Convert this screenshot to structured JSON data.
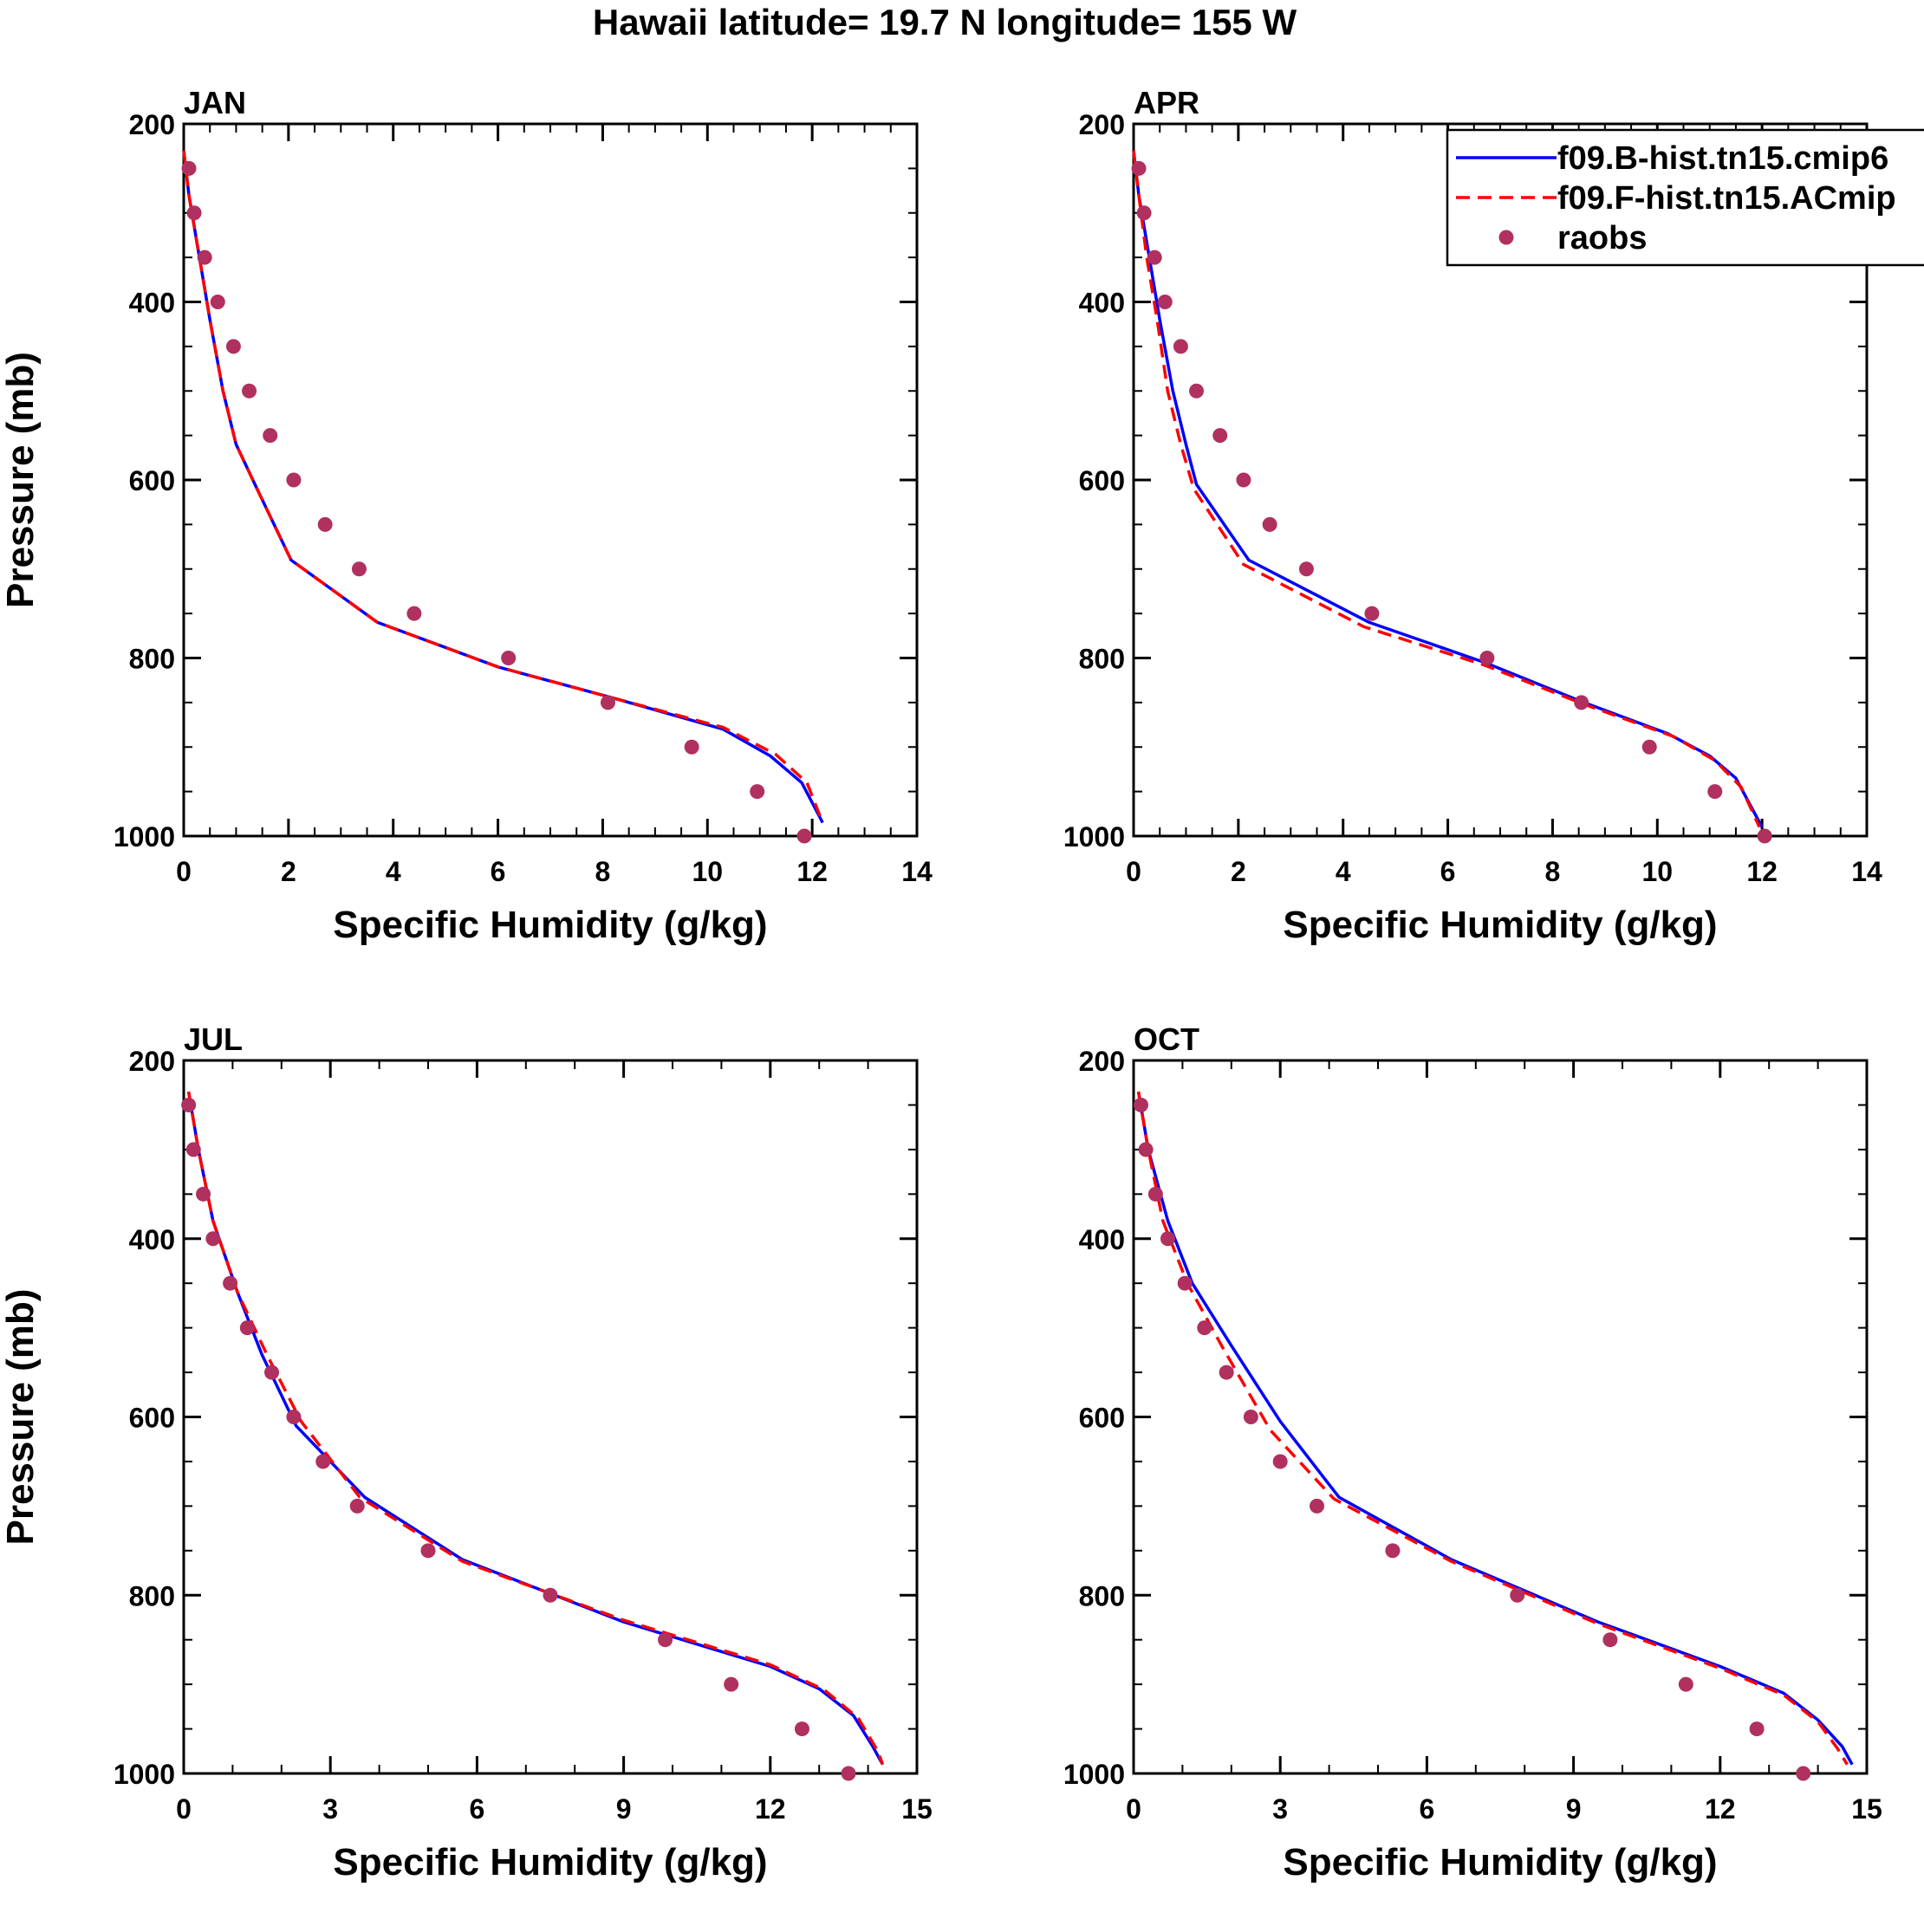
{
  "figure": {
    "title": "Hawaii  latitude= 19.7 N longitude= 155 W"
  },
  "legend": {
    "entries": [
      {
        "label": "f09.B-hist.tn15.cmip6",
        "style": "solid",
        "color": "#0000ff"
      },
      {
        "label": "f09.F-hist.tn15.ACmip",
        "style": "dashed",
        "color": "#ff0000"
      },
      {
        "label": "raobs",
        "style": "marker",
        "color": "#b03060"
      }
    ]
  },
  "chart_data": [
    {
      "type": "line",
      "panel_label": "JAN",
      "xlabel": "Specific Humidity (g/kg)",
      "ylabel": "Pressure (mb)",
      "xlim": [
        0,
        14
      ],
      "ylim": [
        200,
        1000
      ],
      "y_inverted": true,
      "xticks": [
        0,
        2,
        4,
        6,
        8,
        10,
        12,
        14
      ],
      "xtick_labels": [
        "0",
        "2",
        "4",
        "6",
        "8",
        "10",
        "12",
        "14"
      ],
      "yticks": [
        200,
        400,
        600,
        800,
        1000
      ],
      "ytick_labels": [
        "200",
        "400",
        "600",
        "800",
        "1000"
      ],
      "series": [
        {
          "name": "f09.B-hist.tn15.cmip6",
          "style": "solid",
          "color": "#0000ff",
          "points": [
            [
              0.0,
              230
            ],
            [
              0.1,
              280
            ],
            [
              0.3,
              350
            ],
            [
              0.5,
              420
            ],
            [
              0.75,
              500
            ],
            [
              1.0,
              560
            ],
            [
              1.4,
              610
            ],
            [
              2.05,
              690
            ],
            [
              3.7,
              760
            ],
            [
              6.0,
              810
            ],
            [
              8.2,
              845
            ],
            [
              10.3,
              880
            ],
            [
              11.2,
              910
            ],
            [
              11.8,
              940
            ],
            [
              12.2,
              985
            ]
          ]
        },
        {
          "name": "f09.F-hist.tn15.ACmip",
          "style": "dashed",
          "color": "#ff0000",
          "points": [
            [
              0.0,
              230
            ],
            [
              0.1,
              280
            ],
            [
              0.3,
              350
            ],
            [
              0.5,
              420
            ],
            [
              0.75,
              500
            ],
            [
              1.0,
              560
            ],
            [
              1.4,
              610
            ],
            [
              2.05,
              690
            ],
            [
              3.7,
              760
            ],
            [
              6.0,
              810
            ],
            [
              8.2,
              845
            ],
            [
              10.3,
              878
            ],
            [
              11.3,
              908
            ],
            [
              11.9,
              940
            ],
            [
              12.2,
              985
            ]
          ]
        },
        {
          "name": "raobs",
          "style": "marker",
          "color": "#b03060",
          "points": [
            [
              0.1,
              250
            ],
            [
              0.2,
              300
            ],
            [
              0.4,
              350
            ],
            [
              0.65,
              400
            ],
            [
              0.95,
              450
            ],
            [
              1.25,
              500
            ],
            [
              1.65,
              550
            ],
            [
              2.1,
              600
            ],
            [
              2.7,
              650
            ],
            [
              3.35,
              700
            ],
            [
              4.4,
              750
            ],
            [
              6.2,
              800
            ],
            [
              8.1,
              850
            ],
            [
              9.7,
              900
            ],
            [
              10.95,
              950
            ],
            [
              11.85,
              1000
            ]
          ]
        }
      ]
    },
    {
      "type": "line",
      "panel_label": "APR",
      "xlabel": "Specific Humidity (g/kg)",
      "ylabel": "",
      "xlim": [
        0,
        14
      ],
      "ylim": [
        200,
        1000
      ],
      "y_inverted": true,
      "xticks": [
        0,
        2,
        4,
        6,
        8,
        10,
        12,
        14
      ],
      "xtick_labels": [
        "0",
        "2",
        "4",
        "6",
        "8",
        "10",
        "12",
        "14"
      ],
      "yticks": [
        200,
        400,
        600,
        800,
        1000
      ],
      "ytick_labels": [
        "200",
        "400",
        "600",
        "800",
        "1000"
      ],
      "series": [
        {
          "name": "f09.B-hist.tn15.cmip6",
          "style": "solid",
          "color": "#0000ff",
          "points": [
            [
              0.0,
              230
            ],
            [
              0.1,
              280
            ],
            [
              0.3,
              350
            ],
            [
              0.5,
              420
            ],
            [
              0.75,
              500
            ],
            [
              1.0,
              560
            ],
            [
              1.2,
              605
            ],
            [
              2.2,
              690
            ],
            [
              4.5,
              760
            ],
            [
              6.7,
              805
            ],
            [
              8.6,
              850
            ],
            [
              10.2,
              885
            ],
            [
              11.0,
              910
            ],
            [
              11.5,
              935
            ],
            [
              12.0,
              990
            ]
          ]
        },
        {
          "name": "f09.F-hist.tn15.ACmip",
          "style": "dashed",
          "color": "#ff0000",
          "points": [
            [
              0.0,
              230
            ],
            [
              0.1,
              280
            ],
            [
              0.25,
              350
            ],
            [
              0.45,
              420
            ],
            [
              0.65,
              500
            ],
            [
              0.9,
              560
            ],
            [
              1.15,
              610
            ],
            [
              2.1,
              695
            ],
            [
              4.4,
              765
            ],
            [
              6.7,
              808
            ],
            [
              8.6,
              852
            ],
            [
              10.3,
              888
            ],
            [
              11.1,
              915
            ],
            [
              11.6,
              945
            ],
            [
              11.95,
              990
            ]
          ]
        },
        {
          "name": "raobs",
          "style": "marker",
          "color": "#b03060",
          "points": [
            [
              0.1,
              250
            ],
            [
              0.2,
              300
            ],
            [
              0.4,
              350
            ],
            [
              0.6,
              400
            ],
            [
              0.9,
              450
            ],
            [
              1.2,
              500
            ],
            [
              1.65,
              550
            ],
            [
              2.1,
              600
            ],
            [
              2.6,
              650
            ],
            [
              3.3,
              700
            ],
            [
              4.55,
              750
            ],
            [
              6.75,
              800
            ],
            [
              8.55,
              850
            ],
            [
              9.85,
              900
            ],
            [
              11.1,
              950
            ],
            [
              12.05,
              1000
            ]
          ]
        }
      ]
    },
    {
      "type": "line",
      "panel_label": "JUL",
      "xlabel": "Specific Humidity (g/kg)",
      "ylabel": "Pressure (mb)",
      "xlim": [
        0,
        15
      ],
      "ylim": [
        200,
        1000
      ],
      "y_inverted": true,
      "xticks": [
        0,
        3,
        6,
        9,
        12,
        15
      ],
      "xtick_labels": [
        "0",
        "3",
        "6",
        "9",
        "12",
        "15"
      ],
      "yticks": [
        200,
        400,
        600,
        800,
        1000
      ],
      "ytick_labels": [
        "200",
        "400",
        "600",
        "800",
        "1000"
      ],
      "series": [
        {
          "name": "f09.B-hist.tn15.cmip6",
          "style": "solid",
          "color": "#0000ff",
          "points": [
            [
              0.1,
              235
            ],
            [
              0.3,
              300
            ],
            [
              0.6,
              380
            ],
            [
              1.1,
              460
            ],
            [
              1.6,
              530
            ],
            [
              2.3,
              610
            ],
            [
              3.7,
              690
            ],
            [
              5.7,
              760
            ],
            [
              9.0,
              830
            ],
            [
              12.0,
              880
            ],
            [
              13.0,
              905
            ],
            [
              13.7,
              935
            ],
            [
              14.1,
              970
            ],
            [
              14.3,
              990
            ]
          ]
        },
        {
          "name": "f09.F-hist.tn15.ACmip",
          "style": "dashed",
          "color": "#ff0000",
          "points": [
            [
              0.1,
              235
            ],
            [
              0.3,
              300
            ],
            [
              0.6,
              380
            ],
            [
              1.1,
              460
            ],
            [
              1.7,
              530
            ],
            [
              2.4,
              605
            ],
            [
              3.6,
              690
            ],
            [
              5.7,
              762
            ],
            [
              9.0,
              828
            ],
            [
              12.0,
              878
            ],
            [
              13.1,
              906
            ],
            [
              13.8,
              938
            ],
            [
              14.2,
              975
            ],
            [
              14.3,
              990
            ]
          ]
        },
        {
          "name": "raobs",
          "style": "marker",
          "color": "#b03060",
          "points": [
            [
              0.1,
              250
            ],
            [
              0.2,
              300
            ],
            [
              0.4,
              350
            ],
            [
              0.6,
              400
            ],
            [
              0.95,
              450
            ],
            [
              1.3,
              500
            ],
            [
              1.8,
              550
            ],
            [
              2.25,
              600
            ],
            [
              2.85,
              650
            ],
            [
              3.55,
              700
            ],
            [
              5.0,
              750
            ],
            [
              7.5,
              800
            ],
            [
              9.85,
              850
            ],
            [
              11.2,
              900
            ],
            [
              12.65,
              950
            ],
            [
              13.6,
              1000
            ]
          ]
        }
      ]
    },
    {
      "type": "line",
      "panel_label": "OCT",
      "xlabel": "Specific Humidity (g/kg)",
      "ylabel": "",
      "xlim": [
        0,
        15
      ],
      "ylim": [
        200,
        1000
      ],
      "y_inverted": true,
      "xticks": [
        0,
        3,
        6,
        9,
        12,
        15
      ],
      "xtick_labels": [
        "0",
        "3",
        "6",
        "9",
        "12",
        "15"
      ],
      "yticks": [
        200,
        400,
        600,
        800,
        1000
      ],
      "ytick_labels": [
        "200",
        "400",
        "600",
        "800",
        "1000"
      ],
      "series": [
        {
          "name": "f09.B-hist.tn15.cmip6",
          "style": "solid",
          "color": "#0000ff",
          "points": [
            [
              0.1,
              235
            ],
            [
              0.3,
              300
            ],
            [
              0.7,
              380
            ],
            [
              1.2,
              450
            ],
            [
              2.0,
              520
            ],
            [
              3.0,
              605
            ],
            [
              4.2,
              690
            ],
            [
              6.5,
              760
            ],
            [
              9.5,
              830
            ],
            [
              12.0,
              880
            ],
            [
              13.3,
              910
            ],
            [
              14.0,
              940
            ],
            [
              14.5,
              970
            ],
            [
              14.7,
              990
            ]
          ]
        },
        {
          "name": "f09.F-hist.tn15.ACmip",
          "style": "dashed",
          "color": "#ff0000",
          "points": [
            [
              0.1,
              235
            ],
            [
              0.3,
              300
            ],
            [
              0.6,
              380
            ],
            [
              1.1,
              450
            ],
            [
              1.8,
              520
            ],
            [
              2.8,
              615
            ],
            [
              4.1,
              692
            ],
            [
              6.5,
              762
            ],
            [
              9.5,
              832
            ],
            [
              12.0,
              882
            ],
            [
              13.3,
              912
            ],
            [
              14.0,
              942
            ],
            [
              14.4,
              972
            ],
            [
              14.6,
              990
            ]
          ]
        },
        {
          "name": "raobs",
          "style": "marker",
          "color": "#b03060",
          "points": [
            [
              0.15,
              250
            ],
            [
              0.25,
              300
            ],
            [
              0.45,
              350
            ],
            [
              0.7,
              400
            ],
            [
              1.05,
              450
            ],
            [
              1.45,
              500
            ],
            [
              1.9,
              550
            ],
            [
              2.4,
              600
            ],
            [
              3.0,
              650
            ],
            [
              3.75,
              700
            ],
            [
              5.3,
              750
            ],
            [
              7.85,
              800
            ],
            [
              9.75,
              850
            ],
            [
              11.3,
              900
            ],
            [
              12.75,
              950
            ],
            [
              13.7,
              1000
            ]
          ]
        }
      ]
    }
  ]
}
